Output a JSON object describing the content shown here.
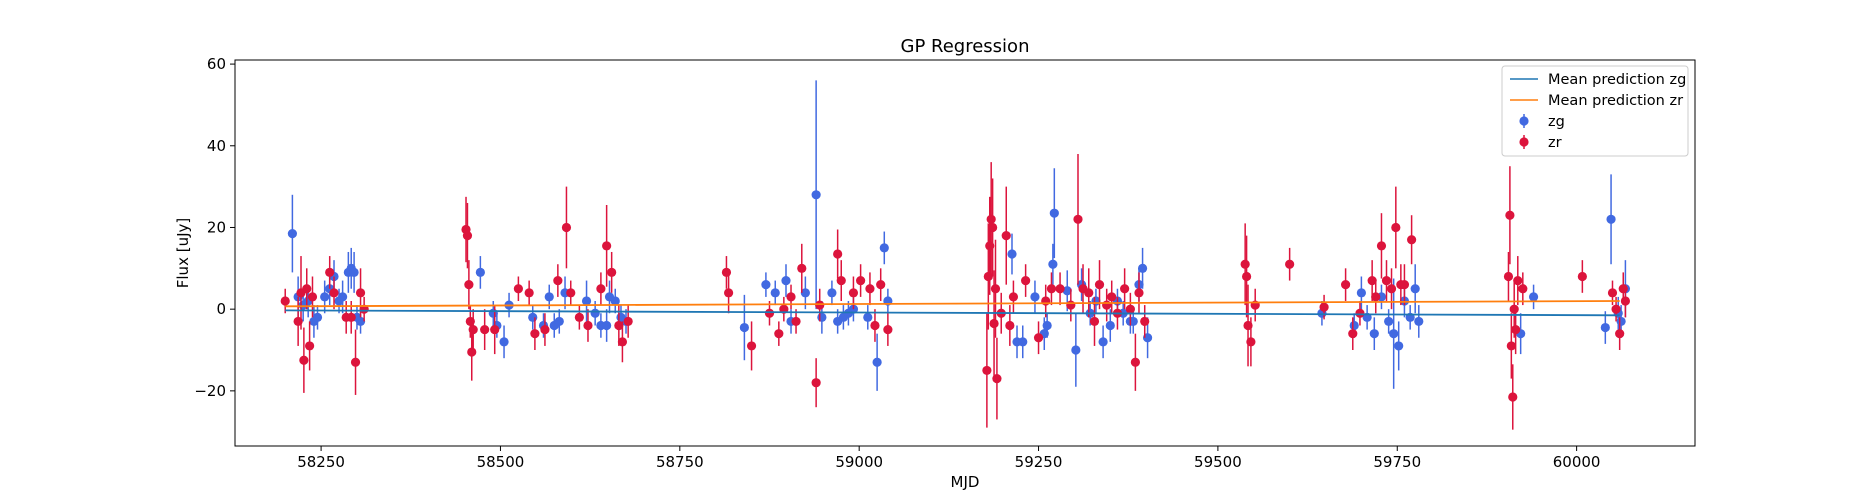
{
  "chart_data": {
    "type": "scatter",
    "title": "GP Regression",
    "xlabel": "MJD",
    "ylabel": "Flux [uJy]",
    "xlim": [
      58130,
      60165
    ],
    "ylim": [
      -33.5,
      61
    ],
    "xticks": [
      58250,
      58500,
      58750,
      59000,
      59250,
      59500,
      59750,
      60000
    ],
    "yticks": [
      -20,
      0,
      20,
      40,
      60
    ],
    "grid": false,
    "legend_position": "top-right",
    "lines": [
      {
        "name": "Mean prediction zg",
        "color": "#1f77b4",
        "x": [
          58200,
          60060
        ],
        "y": [
          -0.3,
          -1.5
        ]
      },
      {
        "name": "Mean prediction zr",
        "color": "#ff7f0e",
        "x": [
          58200,
          60060
        ],
        "y": [
          0.7,
          2.0
        ]
      }
    ],
    "series": [
      {
        "name": "zg",
        "color": "#4169e1",
        "points": [
          [
            58210,
            18.5,
            9.5
          ],
          [
            58218,
            3,
            5
          ],
          [
            58225,
            1,
            4
          ],
          [
            58232,
            2,
            4
          ],
          [
            58240,
            -3,
            4
          ],
          [
            58245,
            -2,
            3
          ],
          [
            58255,
            3,
            4
          ],
          [
            58262,
            5,
            4
          ],
          [
            58268,
            8,
            4
          ],
          [
            58275,
            2,
            3
          ],
          [
            58280,
            3,
            4
          ],
          [
            58288,
            9,
            5
          ],
          [
            58292,
            10,
            5
          ],
          [
            58296,
            9,
            5
          ],
          [
            58300,
            -2,
            3
          ],
          [
            58305,
            -3,
            3
          ],
          [
            58472,
            9,
            4
          ],
          [
            58490,
            -1,
            3
          ],
          [
            58495,
            -4,
            3
          ],
          [
            58505,
            -8,
            4
          ],
          [
            58512,
            1,
            3
          ],
          [
            58545,
            -2,
            3
          ],
          [
            58560,
            -4,
            3
          ],
          [
            58568,
            3,
            3
          ],
          [
            58575,
            -4,
            3
          ],
          [
            58582,
            -3,
            3
          ],
          [
            58590,
            4,
            4
          ],
          [
            58620,
            2,
            5
          ],
          [
            58632,
            -1,
            3
          ],
          [
            58640,
            -4,
            3
          ],
          [
            58648,
            -4,
            4
          ],
          [
            58652,
            3,
            4
          ],
          [
            58660,
            2,
            3
          ],
          [
            58668,
            -2,
            3
          ],
          [
            58675,
            -3,
            3
          ],
          [
            58840,
            -4.5,
            8
          ],
          [
            58870,
            6,
            3
          ],
          [
            58883,
            4,
            3
          ],
          [
            58898,
            7,
            4
          ],
          [
            58905,
            -3,
            3
          ],
          [
            58925,
            4,
            4
          ],
          [
            58940,
            28,
            28
          ],
          [
            58948,
            -2,
            4
          ],
          [
            58962,
            4,
            3
          ],
          [
            58970,
            -3,
            3
          ],
          [
            58978,
            -2,
            3
          ],
          [
            58985,
            -1,
            3
          ],
          [
            58992,
            0,
            3
          ],
          [
            59012,
            -2,
            3
          ],
          [
            59025,
            -13,
            7
          ],
          [
            59035,
            15,
            4
          ],
          [
            59040,
            2,
            3
          ],
          [
            59213,
            13.5,
            5
          ],
          [
            59220,
            -8,
            4
          ],
          [
            59228,
            -8,
            4
          ],
          [
            59245,
            3,
            4
          ],
          [
            59258,
            -6,
            4
          ],
          [
            59262,
            -4,
            3
          ],
          [
            59270,
            11,
            5
          ],
          [
            59272,
            23.5,
            11
          ],
          [
            59290,
            4.5,
            5
          ],
          [
            59302,
            -10,
            9
          ],
          [
            59310,
            6,
            4
          ],
          [
            59322,
            -1,
            3
          ],
          [
            59330,
            2,
            3
          ],
          [
            59340,
            -8,
            4
          ],
          [
            59350,
            -4,
            4
          ],
          [
            59360,
            2,
            3
          ],
          [
            59368,
            -1,
            3
          ],
          [
            59378,
            -3,
            3
          ],
          [
            59382,
            -3,
            3
          ],
          [
            59390,
            6,
            4
          ],
          [
            59395,
            10,
            5
          ],
          [
            59402,
            -7,
            5
          ],
          [
            59645,
            -1,
            3
          ],
          [
            59690,
            -4,
            3
          ],
          [
            59700,
            4,
            4
          ],
          [
            59708,
            -2,
            3
          ],
          [
            59718,
            -6,
            4
          ],
          [
            59728,
            3,
            3
          ],
          [
            59738,
            -3,
            3
          ],
          [
            59745,
            -6,
            13.5
          ],
          [
            59752,
            -9,
            6
          ],
          [
            59760,
            2,
            4
          ],
          [
            59768,
            -2,
            3
          ],
          [
            59775,
            5,
            6
          ],
          [
            59780,
            -3,
            4
          ],
          [
            59922,
            -6,
            5
          ],
          [
            59940,
            3,
            3
          ],
          [
            60040,
            -4.5,
            4
          ],
          [
            60048,
            22,
            11
          ],
          [
            60058,
            -1,
            4
          ],
          [
            60062,
            -3,
            4
          ],
          [
            60068,
            5,
            7
          ]
        ]
      },
      {
        "name": "zr",
        "color": "#dc143c",
        "points": [
          [
            58200,
            2,
            3
          ],
          [
            58218,
            -3,
            6
          ],
          [
            58222,
            4,
            9
          ],
          [
            58226,
            -12.5,
            8
          ],
          [
            58230,
            5,
            5
          ],
          [
            58234,
            -9,
            6
          ],
          [
            58238,
            3,
            5
          ],
          [
            58262,
            9,
            4
          ],
          [
            58268,
            4,
            4
          ],
          [
            58285,
            -2,
            4
          ],
          [
            58292,
            -2,
            4
          ],
          [
            58298,
            -13,
            8
          ],
          [
            58305,
            4,
            6
          ],
          [
            58310,
            0,
            3
          ],
          [
            58452,
            19.5,
            8
          ],
          [
            58454,
            18,
            8
          ],
          [
            58456,
            6,
            6
          ],
          [
            58458,
            -3,
            4
          ],
          [
            58460,
            -10.5,
            7
          ],
          [
            58462,
            -5,
            5
          ],
          [
            58478,
            -5,
            5
          ],
          [
            58492,
            -5,
            6
          ],
          [
            58525,
            5,
            3
          ],
          [
            58540,
            4,
            3
          ],
          [
            58548,
            -6,
            4
          ],
          [
            58562,
            -5,
            4
          ],
          [
            58580,
            7,
            4
          ],
          [
            58592,
            20,
            10
          ],
          [
            58598,
            4,
            3
          ],
          [
            58610,
            -2,
            3
          ],
          [
            58622,
            -4,
            4
          ],
          [
            58640,
            5,
            4
          ],
          [
            58648,
            15.5,
            10
          ],
          [
            58655,
            9,
            5
          ],
          [
            58665,
            -4,
            5
          ],
          [
            58670,
            -8,
            5
          ],
          [
            58678,
            -3,
            4
          ],
          [
            58815,
            9,
            4
          ],
          [
            58818,
            4,
            5
          ],
          [
            58850,
            -9,
            6
          ],
          [
            58875,
            -1,
            3
          ],
          [
            58888,
            -6,
            3
          ],
          [
            58895,
            0,
            3
          ],
          [
            58905,
            3,
            3
          ],
          [
            58912,
            -3,
            3
          ],
          [
            58920,
            10,
            6
          ],
          [
            58940,
            -18,
            6
          ],
          [
            58945,
            1,
            4
          ],
          [
            58970,
            13.5,
            6
          ],
          [
            58975,
            7,
            5
          ],
          [
            58992,
            4,
            4
          ],
          [
            59002,
            7,
            4
          ],
          [
            59015,
            5,
            4
          ],
          [
            59022,
            -4,
            4
          ],
          [
            59030,
            6,
            4
          ],
          [
            59040,
            -5,
            4
          ],
          [
            59178,
            -15,
            14
          ],
          [
            59180,
            8,
            13
          ],
          [
            59182,
            15.5,
            12
          ],
          [
            59184,
            22,
            14
          ],
          [
            59186,
            20,
            12
          ],
          [
            59188,
            -3.5,
            13
          ],
          [
            59190,
            5,
            12
          ],
          [
            59192,
            -17,
            10
          ],
          [
            59198,
            -1,
            5
          ],
          [
            59205,
            18,
            12
          ],
          [
            59210,
            -4,
            5
          ],
          [
            59215,
            3,
            4
          ],
          [
            59232,
            7,
            4
          ],
          [
            59250,
            -7,
            4
          ],
          [
            59260,
            2,
            4
          ],
          [
            59268,
            5,
            4
          ],
          [
            59280,
            5,
            4
          ],
          [
            59295,
            1,
            4
          ],
          [
            59305,
            22,
            16
          ],
          [
            59312,
            5,
            6
          ],
          [
            59320,
            4,
            6
          ],
          [
            59328,
            -3,
            6
          ],
          [
            59335,
            6,
            6
          ],
          [
            59345,
            1,
            4
          ],
          [
            59352,
            3,
            4
          ],
          [
            59360,
            -1,
            4
          ],
          [
            59370,
            5,
            5
          ],
          [
            59378,
            0,
            4
          ],
          [
            59385,
            -13,
            7
          ],
          [
            59390,
            4,
            5
          ],
          [
            59398,
            -3,
            4
          ],
          [
            59538,
            11,
            10
          ],
          [
            59540,
            8,
            10
          ],
          [
            59542,
            -4,
            10
          ],
          [
            59546,
            -8,
            6
          ],
          [
            59552,
            1,
            4
          ],
          [
            59600,
            11,
            4
          ],
          [
            59648,
            0.5,
            3
          ],
          [
            59678,
            6,
            4
          ],
          [
            59688,
            -6,
            4
          ],
          [
            59698,
            -1,
            3
          ],
          [
            59715,
            7,
            5
          ],
          [
            59720,
            3,
            4
          ],
          [
            59728,
            15.5,
            8
          ],
          [
            59735,
            7,
            5
          ],
          [
            59742,
            5,
            5
          ],
          [
            59748,
            20,
            10
          ],
          [
            59755,
            6,
            5
          ],
          [
            59760,
            6,
            5
          ],
          [
            59770,
            17,
            6
          ],
          [
            59905,
            8,
            6
          ],
          [
            59907,
            23,
            12
          ],
          [
            59909,
            -9,
            8
          ],
          [
            59911,
            -21.5,
            8
          ],
          [
            59913,
            0,
            7
          ],
          [
            59915,
            -5,
            6
          ],
          [
            59918,
            7,
            6
          ],
          [
            59925,
            5,
            4
          ],
          [
            60008,
            8,
            4
          ],
          [
            60050,
            4,
            3
          ],
          [
            60055,
            0,
            3
          ],
          [
            60060,
            -6,
            4
          ],
          [
            60065,
            5,
            4
          ],
          [
            60068,
            2,
            4
          ]
        ]
      }
    ]
  }
}
